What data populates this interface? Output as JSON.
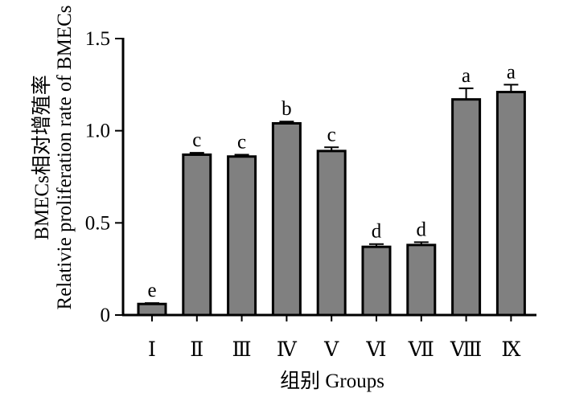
{
  "chart_data": {
    "type": "bar",
    "categories": [
      "Ⅰ",
      "Ⅱ",
      "Ⅲ",
      "Ⅳ",
      "Ⅴ",
      "Ⅵ",
      "Ⅶ",
      "Ⅷ",
      "Ⅸ"
    ],
    "values": [
      0.06,
      0.87,
      0.86,
      1.04,
      0.89,
      0.37,
      0.38,
      1.17,
      1.21
    ],
    "errors": [
      0.005,
      0.01,
      0.01,
      0.01,
      0.02,
      0.015,
      0.015,
      0.06,
      0.04
    ],
    "significance_labels": [
      "e",
      "c",
      "c",
      "b",
      "c",
      "d",
      "d",
      "a",
      "a"
    ],
    "xlabel": "组别 Groups",
    "ylabel_lines": [
      "BMECs相对增殖率",
      "Relativie proliferation rate of BMECs"
    ],
    "ylim": [
      0,
      1.5
    ],
    "yticks": [
      0,
      0.5,
      1.0,
      1.5
    ],
    "ytick_labels": [
      "0",
      "0.5",
      "1.0",
      "1.5"
    ],
    "grid": false,
    "colors": {
      "bar_fill": "#808080",
      "bar_stroke": "#000000",
      "axis": "#000000"
    }
  }
}
